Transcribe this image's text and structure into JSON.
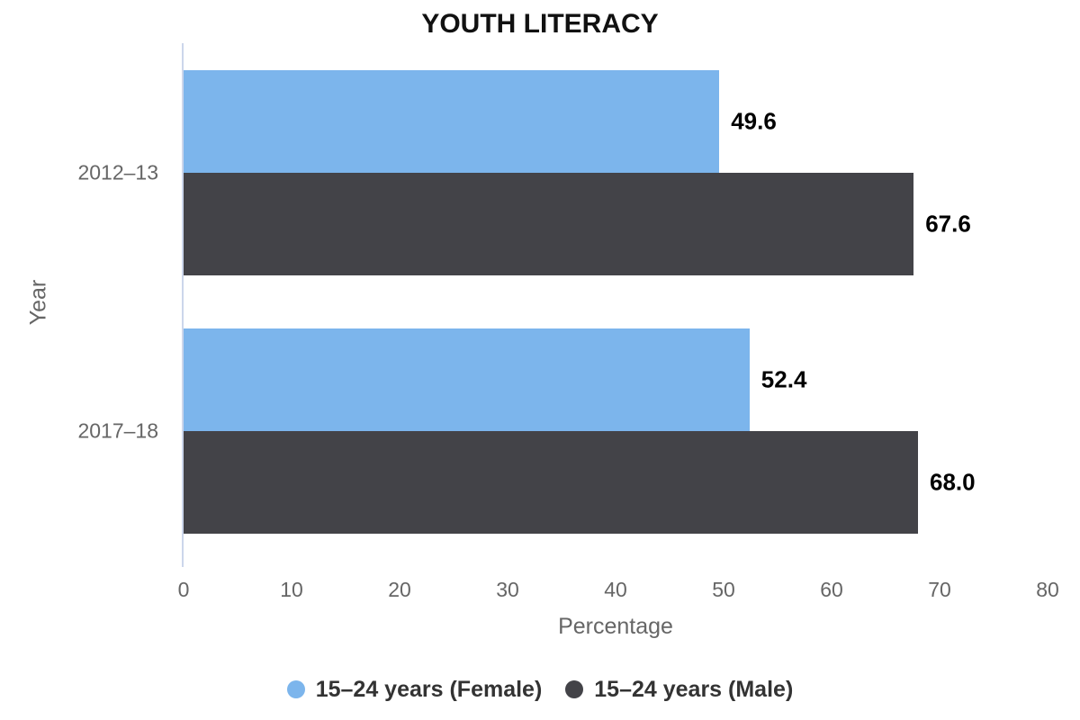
{
  "chart_data": {
    "type": "bar",
    "orientation": "horizontal",
    "title": "YOUTH LITERACY",
    "categories": [
      "2012–13",
      "2017–18"
    ],
    "series": [
      {
        "name": "15–24 years (Female)",
        "color": "#7cb5ec",
        "values": [
          49.6,
          52.4
        ],
        "value_labels": [
          "49.6",
          "52.4"
        ]
      },
      {
        "name": "15–24 years (Male)",
        "color": "#434348",
        "values": [
          67.6,
          68.0
        ],
        "value_labels": [
          "67.6",
          "68.0"
        ]
      }
    ],
    "xlabel": "Percentage",
    "ylabel": "Year",
    "xlim": [
      0,
      80
    ],
    "x_ticks": [
      0,
      10,
      20,
      30,
      40,
      50,
      60,
      70,
      80
    ],
    "grid": false,
    "legend_position": "bottom",
    "data_labels_shown": true
  },
  "style": {
    "background": "#ffffff",
    "axis_line_color": "#ccd6eb",
    "axis_text_color": "#666666",
    "title_color": "#111111",
    "data_label_color": "#000000",
    "legend_text_color": "#333333"
  }
}
